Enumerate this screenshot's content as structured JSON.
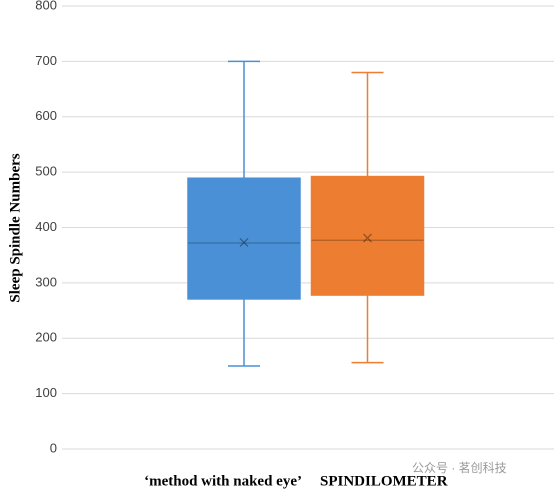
{
  "chart_data": {
    "type": "box",
    "y_label": "Sleep Spindle Numbers",
    "categories": [
      "‘method with naked eye’",
      "SPINDILOMETER"
    ],
    "boxes": [
      {
        "color": "#4a90d6",
        "min": 150,
        "q1": 271,
        "median": 372,
        "mean": 373,
        "q3": 489,
        "max": 700
      },
      {
        "color": "#ed7d31",
        "min": 156,
        "q1": 278,
        "median": 377,
        "mean": 381,
        "q3": 492,
        "max": 680
      }
    ],
    "ylim": [
      0,
      800
    ],
    "yticks": [
      0,
      100,
      200,
      300,
      400,
      500,
      600,
      700,
      800
    ],
    "grid": true,
    "watermark": "公众号 · 茗创科技"
  }
}
